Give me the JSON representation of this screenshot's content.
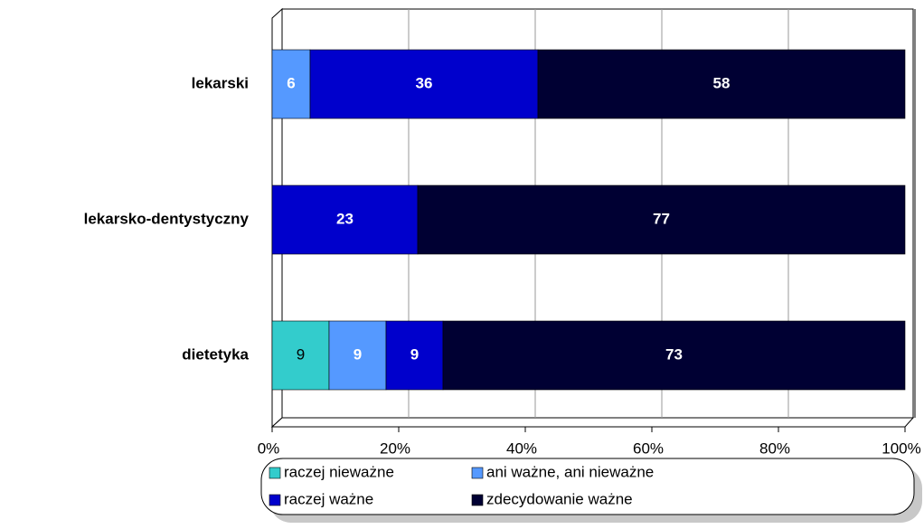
{
  "chart_data": {
    "type": "stacked-bar-horizontal",
    "categories": [
      "lekarski",
      "lekarsko-dentystyczny",
      "dietetyka"
    ],
    "series": [
      {
        "name": "raczej nieważne",
        "color": "#33cccc",
        "values": [
          null,
          null,
          9
        ]
      },
      {
        "name": "ani ważne, ani nieważne",
        "color": "#5599ff",
        "values": [
          6,
          null,
          9
        ]
      },
      {
        "name": "raczej ważne",
        "color": "#0000cc",
        "values": [
          36,
          23,
          9
        ]
      },
      {
        "name": "zdecydowanie ważne",
        "color": "#000033",
        "values": [
          58,
          77,
          73
        ]
      }
    ],
    "xlim": [
      0,
      100
    ],
    "xticks": [
      {
        "value": 0,
        "label": "0%"
      },
      {
        "value": 20,
        "label": "20%"
      },
      {
        "value": 40,
        "label": "40%"
      },
      {
        "value": 60,
        "label": "60%"
      },
      {
        "value": 80,
        "label": "80%"
      },
      {
        "value": 100,
        "label": "100%"
      }
    ],
    "grid": true
  }
}
